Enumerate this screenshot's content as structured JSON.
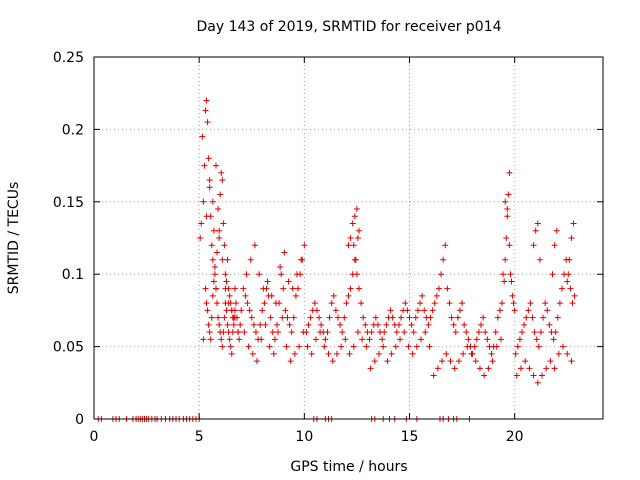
{
  "chart_data": {
    "type": "scatter",
    "title": "Day 143 of 2019, SRMTID for receiver p014",
    "xlabel": "GPS time / hours",
    "ylabel": "SRMTID / TECUs",
    "xlim": [
      0,
      24.2
    ],
    "ylim": [
      0,
      0.25
    ],
    "grid": true,
    "legend": "none",
    "marker": "+",
    "colors": {
      "points": "#e00000",
      "axis": "#000000",
      "grid": "#a0a0a0"
    },
    "x_ticks": [
      {
        "value": 0,
        "label": "0"
      },
      {
        "value": 5,
        "label": "5"
      },
      {
        "value": 10,
        "label": "10"
      },
      {
        "value": 15,
        "label": "15"
      },
      {
        "value": 20,
        "label": "20"
      }
    ],
    "y_ticks": [
      {
        "value": 0,
        "label": "0"
      },
      {
        "value": 0.05,
        "label": "0.05"
      },
      {
        "value": 0.1,
        "label": "0.1"
      },
      {
        "value": 0.15,
        "label": "0.15"
      },
      {
        "value": 0.2,
        "label": "0.2"
      },
      {
        "value": 0.25,
        "label": "0.25"
      }
    ],
    "series": [
      {
        "name": "SRMTID p014",
        "x": [
          0.2,
          0.35,
          0.9,
          1.05,
          1.2,
          1.55,
          1.85,
          2.0,
          2.1,
          2.2,
          2.3,
          2.4,
          2.5,
          2.6,
          2.75,
          2.9,
          3.0,
          3.2,
          3.4,
          3.6,
          3.75,
          3.9,
          4.05,
          4.25,
          4.4,
          4.55,
          4.7,
          4.85,
          5.0,
          10.45,
          10.6,
          11.0,
          11.15,
          11.3,
          13.2,
          13.35,
          13.75,
          14.05,
          14.3,
          14.85,
          15.35,
          16.45,
          16.6,
          16.85,
          17.1,
          17.25,
          17.85,
          5.05,
          5.1,
          5.15,
          5.2,
          5.25,
          5.3,
          5.35,
          5.4,
          5.45,
          5.5,
          5.55,
          5.6,
          5.65,
          5.7,
          5.75,
          5.8,
          5.85,
          5.9,
          5.95,
          6.0,
          6.05,
          6.1,
          6.15,
          6.2,
          6.25,
          6.3,
          6.35,
          6.4,
          6.45,
          6.5,
          6.55,
          6.6,
          6.65,
          6.7,
          6.75,
          6.8,
          6.85,
          6.9,
          6.95,
          7.0,
          5.3,
          5.35,
          5.4,
          5.45,
          5.5,
          5.55,
          5.6,
          5.65,
          5.7,
          5.75,
          5.8,
          5.85,
          5.9,
          5.95,
          6.0,
          6.05,
          6.1,
          6.15,
          6.2,
          6.25,
          6.3,
          6.35,
          6.4,
          6.45,
          6.5,
          6.55,
          6.6,
          6.65,
          6.7,
          5.2,
          5.35,
          5.5,
          5.65,
          5.8,
          5.95,
          6.1,
          6.25,
          6.4,
          6.55,
          6.7,
          6.85,
          7.1,
          7.2,
          7.3,
          7.4,
          7.5,
          7.6,
          7.7,
          7.8,
          7.9,
          8.0,
          8.1,
          8.2,
          8.3,
          8.4,
          8.5,
          8.6,
          8.7,
          8.8,
          8.9,
          9.0,
          9.1,
          9.2,
          9.3,
          9.4,
          9.5,
          9.6,
          9.7,
          9.8,
          9.9,
          10.0,
          7.15,
          7.35,
          7.55,
          7.75,
          7.95,
          8.15,
          8.35,
          8.55,
          8.75,
          8.95,
          9.15,
          9.35,
          9.55,
          9.75,
          9.95,
          7.25,
          7.45,
          7.65,
          7.85,
          8.05,
          8.25,
          8.45,
          8.65,
          8.85,
          9.05,
          9.25,
          9.45,
          9.65,
          9.85,
          10.1,
          10.2,
          10.3,
          10.4,
          10.5,
          10.6,
          10.7,
          10.8,
          10.9,
          11.0,
          11.1,
          11.2,
          11.3,
          11.4,
          11.5,
          11.6,
          11.7,
          11.8,
          11.9,
          12.0,
          12.1,
          12.2,
          12.3,
          12.4,
          12.5,
          12.6,
          12.7,
          12.8,
          12.9,
          13.0,
          10.15,
          10.35,
          10.55,
          10.75,
          10.95,
          11.15,
          11.35,
          11.55,
          11.75,
          11.95,
          12.15,
          12.35,
          12.55,
          12.75,
          12.95,
          12.1,
          12.2,
          12.3,
          12.4,
          12.5,
          12.6,
          12.35,
          12.45,
          12.55,
          13.1,
          13.2,
          13.3,
          13.4,
          13.5,
          13.6,
          13.7,
          13.8,
          13.9,
          14.0,
          14.1,
          14.2,
          14.3,
          14.4,
          14.5,
          14.6,
          14.7,
          14.8,
          14.9,
          15.0,
          15.1,
          15.2,
          15.3,
          15.4,
          15.5,
          15.6,
          15.7,
          15.8,
          15.9,
          16.0,
          13.15,
          13.35,
          13.55,
          13.75,
          13.95,
          14.15,
          14.35,
          14.55,
          14.75,
          14.95,
          15.15,
          15.35,
          15.55,
          15.75,
          15.95,
          16.1,
          16.2,
          16.3,
          16.4,
          16.5,
          16.6,
          16.7,
          16.8,
          16.9,
          17.0,
          17.1,
          17.2,
          17.3,
          17.4,
          17.5,
          17.6,
          17.7,
          17.8,
          17.9,
          18.0,
          18.1,
          18.2,
          18.3,
          18.4,
          18.5,
          18.6,
          18.7,
          18.8,
          18.9,
          19.0,
          16.15,
          16.35,
          16.55,
          16.75,
          16.95,
          17.15,
          17.35,
          17.55,
          17.75,
          17.95,
          18.15,
          18.35,
          18.55,
          18.75,
          18.95,
          19.1,
          19.2,
          19.3,
          19.4,
          19.5,
          19.55,
          19.6,
          19.65,
          19.7,
          19.75,
          19.8,
          19.9,
          20.0,
          19.15,
          19.35,
          19.45,
          19.55,
          19.65,
          19.75,
          19.85,
          19.95,
          20.05,
          20.15,
          20.25,
          20.35,
          20.45,
          20.55,
          20.65,
          20.75,
          20.85,
          20.95,
          21.05,
          21.15,
          21.25,
          21.35,
          21.45,
          21.55,
          21.65,
          21.75,
          21.85,
          21.95,
          22.05,
          22.15,
          22.25,
          22.35,
          22.45,
          22.55,
          22.65,
          22.75,
          22.85,
          20.1,
          20.3,
          20.5,
          20.7,
          20.9,
          21.1,
          21.3,
          21.5,
          21.7,
          21.9,
          22.1,
          22.3,
          22.5,
          22.7,
          20.9,
          21.0,
          21.1,
          21.2,
          21.8,
          21.9,
          22.0,
          22.5,
          22.6,
          22.7,
          22.8
        ],
        "y": [
          0,
          0,
          0,
          0,
          0,
          0,
          0,
          0,
          0,
          0,
          0,
          0,
          0,
          0,
          0,
          0,
          0,
          0,
          0,
          0,
          0,
          0,
          0,
          0,
          0,
          0,
          0,
          0,
          0,
          0,
          0,
          0,
          0,
          0,
          0,
          0,
          0,
          0,
          0,
          0,
          0,
          0,
          0,
          0,
          0,
          0,
          0,
          0.125,
          0.135,
          0.195,
          0.15,
          0.175,
          0.213,
          0.22,
          0.205,
          0.18,
          0.165,
          0.14,
          0.12,
          0.11,
          0.13,
          0.1,
          0.09,
          0.115,
          0.145,
          0.125,
          0.155,
          0.17,
          0.165,
          0.135,
          0.12,
          0.1,
          0.095,
          0.11,
          0.09,
          0.085,
          0.08,
          0.075,
          0.07,
          0.065,
          0.09,
          0.08,
          0.07,
          0.06,
          0.055,
          0.065,
          0.075,
          0.09,
          0.08,
          0.075,
          0.065,
          0.06,
          0.055,
          0.07,
          0.085,
          0.095,
          0.105,
          0.09,
          0.08,
          0.07,
          0.065,
          0.06,
          0.055,
          0.05,
          0.06,
          0.07,
          0.08,
          0.075,
          0.065,
          0.06,
          0.055,
          0.05,
          0.045,
          0.06,
          0.07,
          0.075,
          0.055,
          0.14,
          0.16,
          0.15,
          0.175,
          0.13,
          0.11,
          0.09,
          0.08,
          0.075,
          0.07,
          0.06,
          0.09,
          0.085,
          0.08,
          0.075,
          0.07,
          0.065,
          0.06,
          0.055,
          0.065,
          0.075,
          0.08,
          0.09,
          0.085,
          0.07,
          0.06,
          0.055,
          0.065,
          0.08,
          0.1,
          0.09,
          0.075,
          0.07,
          0.065,
          0.06,
          0.07,
          0.085,
          0.09,
          0.1,
          0.11,
          0.12,
          0.06,
          0.05,
          0.045,
          0.04,
          0.055,
          0.065,
          0.05,
          0.045,
          0.06,
          0.07,
          0.05,
          0.04,
          0.045,
          0.05,
          0.06,
          0.1,
          0.11,
          0.12,
          0.1,
          0.09,
          0.095,
          0.085,
          0.08,
          0.105,
          0.115,
          0.095,
          0.09,
          0.1,
          0.11,
          0.06,
          0.065,
          0.07,
          0.075,
          0.08,
          0.075,
          0.07,
          0.065,
          0.06,
          0.055,
          0.06,
          0.07,
          0.08,
          0.085,
          0.075,
          0.07,
          0.065,
          0.06,
          0.07,
          0.08,
          0.085,
          0.09,
          0.1,
          0.11,
          0.1,
          0.09,
          0.08,
          0.07,
          0.065,
          0.06,
          0.05,
          0.045,
          0.055,
          0.06,
          0.05,
          0.045,
          0.04,
          0.045,
          0.05,
          0.055,
          0.045,
          0.05,
          0.06,
          0.055,
          0.05,
          0.12,
          0.125,
          0.135,
          0.14,
          0.145,
          0.13,
          0.12,
          0.11,
          0.125,
          0.055,
          0.06,
          0.065,
          0.07,
          0.065,
          0.06,
          0.055,
          0.06,
          0.065,
          0.07,
          0.075,
          0.07,
          0.065,
          0.06,
          0.065,
          0.07,
          0.075,
          0.08,
          0.075,
          0.07,
          0.065,
          0.06,
          0.07,
          0.075,
          0.08,
          0.085,
          0.075,
          0.07,
          0.065,
          0.07,
          0.035,
          0.04,
          0.045,
          0.05,
          0.04,
          0.045,
          0.05,
          0.055,
          0.06,
          0.05,
          0.045,
          0.05,
          0.055,
          0.06,
          0.05,
          0.075,
          0.08,
          0.085,
          0.09,
          0.1,
          0.11,
          0.12,
          0.09,
          0.08,
          0.07,
          0.065,
          0.06,
          0.07,
          0.075,
          0.08,
          0.065,
          0.06,
          0.055,
          0.05,
          0.045,
          0.05,
          0.055,
          0.06,
          0.065,
          0.07,
          0.06,
          0.055,
          0.05,
          0.045,
          0.05,
          0.03,
          0.035,
          0.04,
          0.045,
          0.04,
          0.035,
          0.04,
          0.045,
          0.05,
          0.045,
          0.04,
          0.035,
          0.03,
          0.035,
          0.04,
          0.06,
          0.07,
          0.075,
          0.08,
          0.095,
          0.11,
          0.125,
          0.14,
          0.155,
          0.17,
          0.1,
          0.085,
          0.075,
          0.05,
          0.055,
          0.1,
          0.15,
          0.145,
          0.12,
          0.095,
          0.08,
          0.045,
          0.05,
          0.055,
          0.06,
          0.065,
          0.07,
          0.075,
          0.08,
          0.07,
          0.06,
          0.055,
          0.05,
          0.06,
          0.07,
          0.08,
          0.075,
          0.065,
          0.06,
          0.055,
          0.06,
          0.07,
          0.08,
          0.09,
          0.1,
          0.11,
          0.1,
          0.09,
          0.08,
          0.085,
          0.03,
          0.035,
          0.04,
          0.035,
          0.03,
          0.025,
          0.03,
          0.035,
          0.04,
          0.035,
          0.045,
          0.05,
          0.045,
          0.04,
          0.12,
          0.13,
          0.135,
          0.11,
          0.1,
          0.12,
          0.13,
          0.095,
          0.11,
          0.125,
          0.135
        ]
      }
    ]
  }
}
